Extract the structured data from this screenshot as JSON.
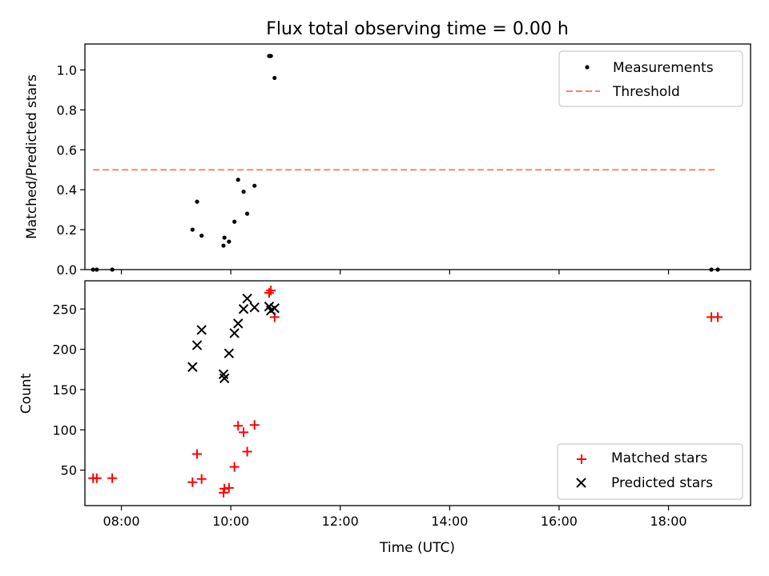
{
  "chart_data": [
    {
      "type": "scatter",
      "title": "Flux total observing time = 0.00 h",
      "xlabel": "",
      "ylabel": "Matched/Predicted stars",
      "xlim": [
        "07:20",
        "19:30"
      ],
      "ylim": [
        0,
        1.13
      ],
      "y_ticks": [
        "0.0",
        "0.2",
        "0.4",
        "0.6",
        "0.8",
        "1.0"
      ],
      "x_ticks": [
        "08:00",
        "10:00",
        "12:00",
        "14:00",
        "16:00",
        "18:00"
      ],
      "x_ticklabels_shown": false,
      "legend_position": "top-right",
      "series": [
        {
          "name": "Measurements",
          "kind": "scatter",
          "marker": "dot",
          "color": "#000000",
          "points": [
            [
              "07:29",
              0.0
            ],
            [
              "07:33",
              0.0
            ],
            [
              "07:50",
              0.0
            ],
            [
              "09:18",
              0.2
            ],
            [
              "09:23",
              0.34
            ],
            [
              "09:28",
              0.17
            ],
            [
              "09:52",
              0.12
            ],
            [
              "09:53",
              0.16
            ],
            [
              "09:58",
              0.14
            ],
            [
              "10:04",
              0.24
            ],
            [
              "10:08",
              0.45
            ],
            [
              "10:14",
              0.39
            ],
            [
              "10:18",
              0.28
            ],
            [
              "10:26",
              0.42
            ],
            [
              "10:42",
              1.07
            ],
            [
              "10:44",
              1.07
            ],
            [
              "10:48",
              0.96
            ],
            [
              "18:47",
              0.0
            ],
            [
              "18:54",
              0.0
            ]
          ]
        },
        {
          "name": "Threshold",
          "kind": "line",
          "dash": "dashed",
          "color": "#ff7f7f",
          "points": [
            [
              "07:29",
              0.5
            ],
            [
              "18:54",
              0.5
            ]
          ]
        }
      ]
    },
    {
      "type": "scatter",
      "title": "",
      "xlabel": "Time (UTC)",
      "ylabel": "Count",
      "xlim": [
        "07:20",
        "19:30"
      ],
      "ylim": [
        6,
        285
      ],
      "y_ticks": [
        "50",
        "100",
        "150",
        "200",
        "250"
      ],
      "x_ticks": [
        "08:00",
        "10:00",
        "12:00",
        "14:00",
        "16:00",
        "18:00"
      ],
      "legend_position": "bottom-right",
      "series": [
        {
          "name": "Matched stars",
          "kind": "scatter",
          "marker": "plus",
          "color": "#ff0000",
          "points": [
            [
              "07:29",
              40
            ],
            [
              "07:33",
              40
            ],
            [
              "07:50",
              40
            ],
            [
              "09:18",
              35
            ],
            [
              "09:23",
              70
            ],
            [
              "09:28",
              39
            ],
            [
              "09:52",
              22
            ],
            [
              "09:53",
              27
            ],
            [
              "09:58",
              28
            ],
            [
              "10:04",
              54
            ],
            [
              "10:08",
              105
            ],
            [
              "10:14",
              97
            ],
            [
              "10:18",
              73
            ],
            [
              "10:26",
              106
            ],
            [
              "10:42",
              270
            ],
            [
              "10:44",
              273
            ],
            [
              "10:48",
              240
            ],
            [
              "18:47",
              240
            ],
            [
              "18:54",
              240
            ]
          ]
        },
        {
          "name": "Predicted stars",
          "kind": "scatter",
          "marker": "x",
          "color": "#000000",
          "points": [
            [
              "09:18",
              178
            ],
            [
              "09:23",
              205
            ],
            [
              "09:28",
              224
            ],
            [
              "09:52",
              169
            ],
            [
              "09:53",
              164
            ],
            [
              "09:58",
              195
            ],
            [
              "10:04",
              220
            ],
            [
              "10:08",
              232
            ],
            [
              "10:14",
              250
            ],
            [
              "10:18",
              263
            ],
            [
              "10:26",
              252
            ],
            [
              "10:42",
              253
            ],
            [
              "10:44",
              248
            ],
            [
              "10:48",
              251
            ]
          ]
        }
      ]
    }
  ]
}
